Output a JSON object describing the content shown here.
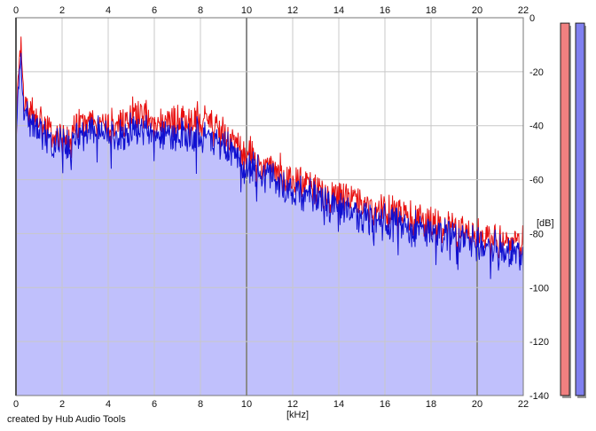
{
  "credit": "created by Hub Audio Tools",
  "colors": {
    "left_channel": "#e81010",
    "right_channel": "#1010d0",
    "fill": "#c0c0fc",
    "grid_minor": "#c8c8c8",
    "grid_major": "#8c8c8c",
    "meter_left": "#f08080",
    "meter_right": "#8080f0"
  },
  "chart_data": {
    "type": "line",
    "xlabel": "[kHz]",
    "ylabel": "[dB]",
    "xlim": [
      0,
      22
    ],
    "ylim": [
      -140,
      0
    ],
    "x_ticks": [
      "0",
      "2",
      "4",
      "6",
      "8",
      "10",
      "12",
      "14",
      "16",
      "18",
      "20",
      "22"
    ],
    "y_ticks": [
      "0",
      "-20",
      "-40",
      "-60",
      "-80",
      "-100",
      "-120",
      "-140"
    ],
    "grid": true,
    "filled_area_below_blue": true,
    "series": [
      {
        "color": "red",
        "x": [
          0,
          0.1,
          0.2,
          0.3,
          0.5,
          1,
          1.5,
          2,
          2.5,
          3,
          4,
          5,
          5.5,
          6,
          7,
          8,
          9,
          10,
          11,
          12,
          13,
          14,
          15,
          16,
          17,
          18,
          19,
          20,
          21,
          22
        ],
        "y": [
          -50,
          -20,
          -10,
          -25,
          -35,
          -38,
          -43,
          -45,
          -42,
          -38,
          -40,
          -36,
          -33,
          -40,
          -38,
          -38,
          -43,
          -50,
          -55,
          -60,
          -64,
          -67,
          -70,
          -72,
          -74,
          -76,
          -78,
          -81,
          -83,
          -84
        ]
      },
      {
        "color": "blue",
        "x": [
          0,
          0.1,
          0.2,
          0.3,
          0.5,
          1,
          1.5,
          2,
          2.5,
          3,
          4,
          5,
          5.5,
          6,
          7,
          8,
          9,
          10,
          11,
          12,
          13,
          14,
          15,
          16,
          17,
          18,
          19,
          20,
          21,
          22
        ],
        "y": [
          -52,
          -24,
          -13,
          -30,
          -38,
          -42,
          -47,
          -48,
          -46,
          -42,
          -44,
          -41,
          -40,
          -44,
          -43,
          -44,
          -47,
          -55,
          -59,
          -64,
          -67,
          -71,
          -74,
          -76,
          -78,
          -79,
          -81,
          -84,
          -86,
          -89
        ]
      }
    ],
    "level_meters": {
      "channels": [
        "left",
        "right"
      ],
      "levels_db": [
        -2,
        -2
      ]
    }
  }
}
